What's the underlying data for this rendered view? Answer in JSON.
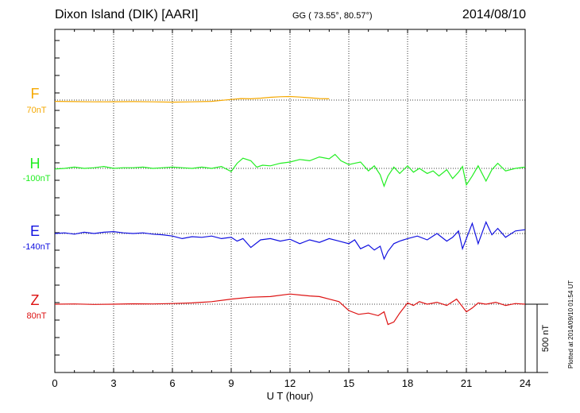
{
  "header": {
    "station": "Dixon Island (DIK)  [AARI]",
    "coordinates": "GG ( 73.55°,  80.57°)",
    "date": "2014/08/10"
  },
  "footer": {
    "plotted_note": "Plotted at 2014/09/10 01:54 UT"
  },
  "chart_data": {
    "type": "line",
    "xlabel": "U T (hour)",
    "xlim": [
      0,
      24
    ],
    "xticks": [
      0,
      3,
      6,
      9,
      12,
      15,
      18,
      21,
      24
    ],
    "y_unit": "nT",
    "scale_bar": {
      "label": "500 nT",
      "value_nT": 500
    },
    "grid": true,
    "series": [
      {
        "name": "F",
        "baseline_label": "70nT",
        "color": "#f5a800",
        "baseline_nT": 70,
        "x": [
          0,
          1,
          2,
          3,
          4,
          5,
          6,
          7,
          8,
          9,
          9.5,
          10,
          10.5,
          11,
          11.5,
          12,
          12.5,
          13,
          13.5,
          14
        ],
        "y": [
          -10,
          -12,
          -14,
          -13,
          -12,
          -14,
          -16,
          -14,
          -10,
          5,
          12,
          10,
          15,
          22,
          26,
          28,
          24,
          18,
          12,
          10
        ]
      },
      {
        "name": "H",
        "baseline_label": "-100nT",
        "color": "#22ee22",
        "baseline_nT": -100,
        "x": [
          0,
          0.5,
          1,
          1.5,
          2,
          2.5,
          3,
          3.5,
          4,
          4.5,
          5,
          5.5,
          6,
          6.5,
          7,
          7.5,
          8,
          8.5,
          9,
          9.3,
          9.6,
          10,
          10.3,
          10.6,
          11,
          11.5,
          12,
          12.5,
          13,
          13.5,
          14,
          14.3,
          14.6,
          15,
          15.3,
          15.6,
          16,
          16.3,
          16.6,
          16.8,
          17,
          17.3,
          17.6,
          18,
          18.3,
          18.6,
          19,
          19.3,
          19.6,
          20,
          20.3,
          20.6,
          20.8,
          21,
          21.3,
          21.6,
          22,
          22.3,
          22.6,
          23,
          23.5,
          24
        ],
        "y": [
          -5,
          0,
          10,
          0,
          5,
          15,
          0,
          5,
          5,
          10,
          0,
          5,
          10,
          5,
          0,
          10,
          0,
          15,
          -25,
          40,
          80,
          60,
          10,
          25,
          20,
          40,
          50,
          70,
          60,
          90,
          75,
          110,
          60,
          30,
          40,
          50,
          -20,
          20,
          -50,
          -140,
          -60,
          10,
          -40,
          20,
          -30,
          0,
          -40,
          -20,
          -60,
          -10,
          -80,
          -30,
          15,
          -130,
          -60,
          20,
          -100,
          -10,
          40,
          -20,
          0,
          10
        ]
      },
      {
        "name": "E",
        "baseline_label": "-140nT",
        "color": "#1010e0",
        "baseline_nT": -140,
        "x": [
          0,
          0.5,
          1,
          1.5,
          2,
          2.5,
          3,
          3.5,
          4,
          4.5,
          5,
          5.5,
          6,
          6.5,
          7,
          7.5,
          8,
          8.5,
          9,
          9.3,
          9.6,
          10,
          10.5,
          11,
          11.5,
          12,
          12.5,
          13,
          13.5,
          14,
          14.5,
          15,
          15.3,
          15.6,
          16,
          16.3,
          16.6,
          16.8,
          17,
          17.3,
          17.6,
          18,
          18.5,
          19,
          19.5,
          20,
          20.3,
          20.6,
          20.8,
          21,
          21.3,
          21.6,
          22,
          22.3,
          22.6,
          23,
          23.5,
          24
        ],
        "y": [
          0,
          5,
          -5,
          10,
          0,
          10,
          15,
          5,
          0,
          5,
          -5,
          -10,
          -20,
          -40,
          -25,
          -30,
          -20,
          -40,
          -30,
          -60,
          -40,
          -110,
          -50,
          -40,
          -60,
          -45,
          -80,
          -50,
          -70,
          -40,
          -60,
          -80,
          -50,
          -120,
          -90,
          -130,
          -100,
          -200,
          -140,
          -80,
          -60,
          -40,
          -20,
          -50,
          0,
          -60,
          -30,
          20,
          -120,
          -40,
          80,
          -80,
          90,
          -10,
          40,
          -30,
          20,
          30
        ]
      },
      {
        "name": "Z",
        "baseline_label": "80nT",
        "color": "#dd1111",
        "baseline_nT": 80,
        "x": [
          0,
          1,
          2,
          3,
          4,
          5,
          6,
          7,
          8,
          9,
          10,
          11,
          12,
          13,
          13.5,
          14,
          14.5,
          15,
          15.5,
          16,
          16.5,
          16.8,
          17,
          17.3,
          17.6,
          18,
          18.3,
          18.6,
          19,
          19.5,
          20,
          20.5,
          21,
          21.3,
          21.6,
          22,
          22.5,
          23,
          23.5,
          24
        ],
        "y": [
          0,
          2,
          -2,
          0,
          3,
          2,
          5,
          10,
          20,
          40,
          55,
          60,
          80,
          65,
          60,
          40,
          20,
          -50,
          -80,
          -70,
          -90,
          -60,
          -160,
          -140,
          -70,
          10,
          -10,
          20,
          0,
          15,
          -10,
          40,
          -60,
          -30,
          10,
          0,
          15,
          -10,
          5,
          0
        ]
      }
    ]
  }
}
